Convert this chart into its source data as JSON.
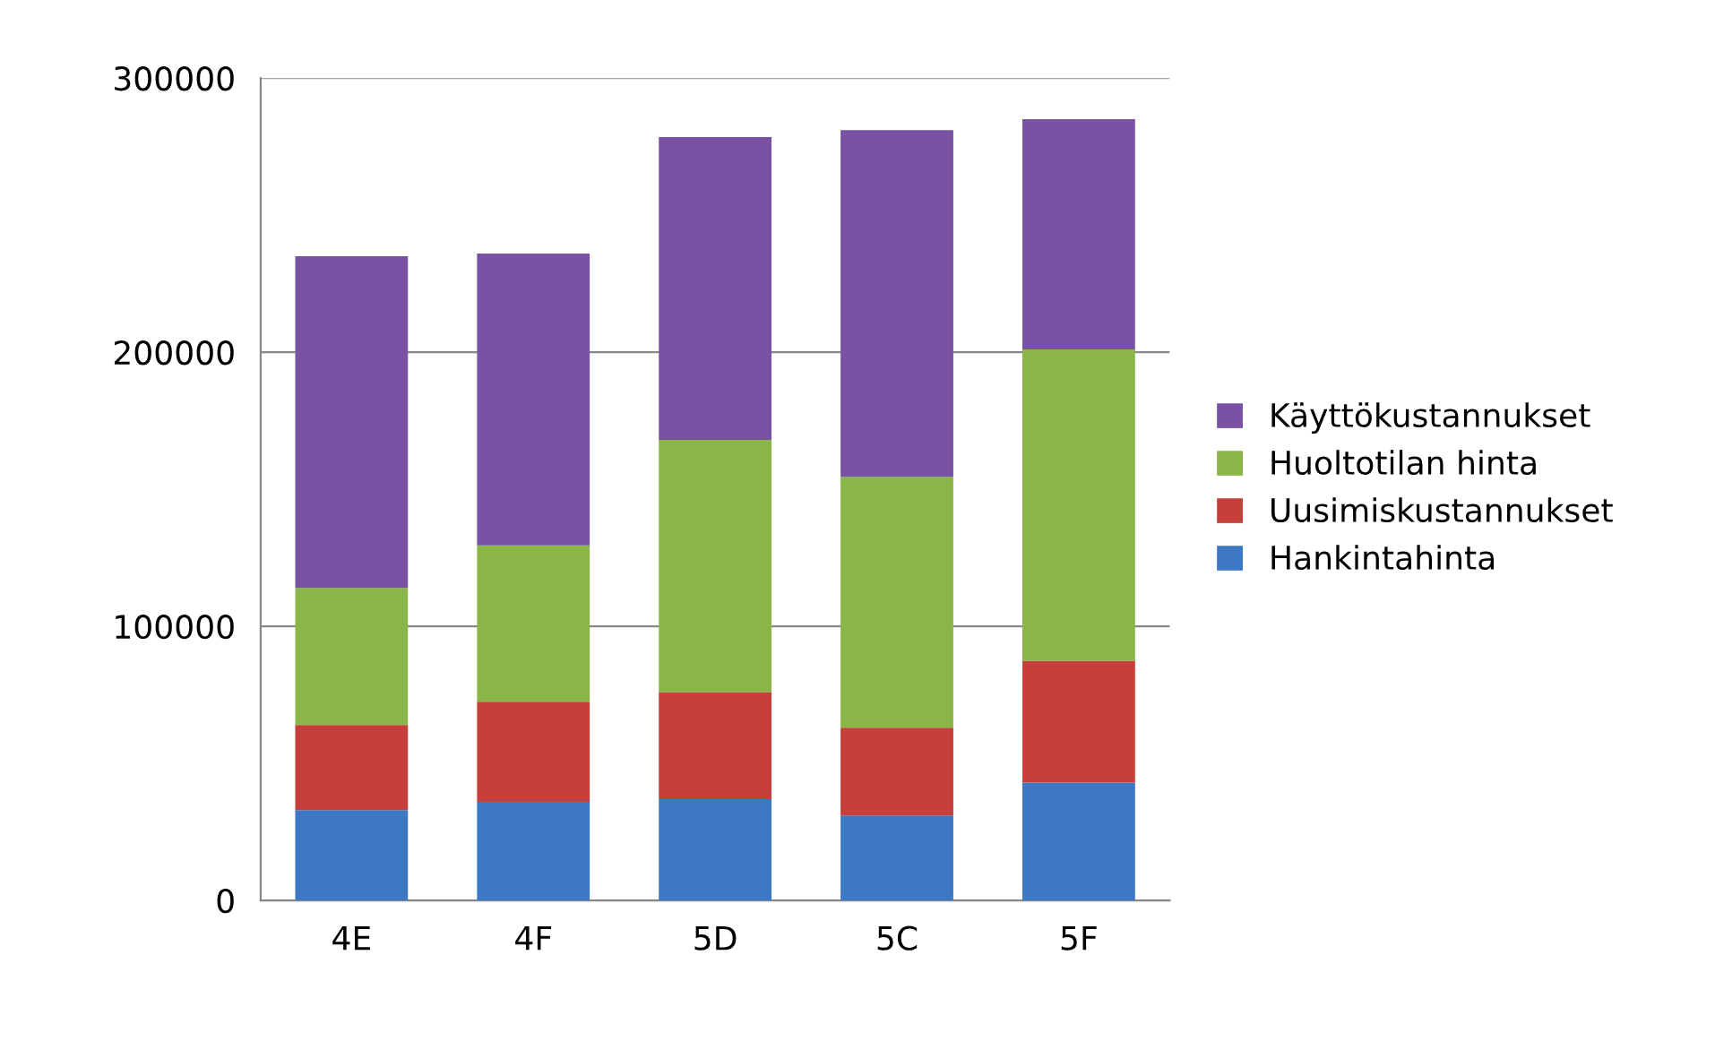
{
  "chart_data": {
    "type": "bar",
    "stacked": true,
    "categories": [
      "4E",
      "4F",
      "5D",
      "5C",
      "5F"
    ],
    "series": [
      {
        "name": "Hankintahinta",
        "color": "#3d78c4",
        "values": [
          33000,
          36000,
          37000,
          31000,
          43000
        ]
      },
      {
        "name": "Uusimiskustannukset",
        "color": "#c73f3b",
        "values": [
          31000,
          36500,
          39000,
          32000,
          44500
        ]
      },
      {
        "name": "Huoltotilan hinta",
        "color": "#8ab547",
        "values": [
          50000,
          57000,
          92000,
          91500,
          113500
        ]
      },
      {
        "name": "Käyttökustannukset",
        "color": "#7952a3",
        "values": [
          121000,
          106500,
          110500,
          126500,
          84000
        ]
      }
    ],
    "ylim": [
      0,
      300000
    ],
    "yticks": [
      0,
      100000,
      200000,
      300000
    ],
    "grid": "y",
    "legend": "right"
  }
}
